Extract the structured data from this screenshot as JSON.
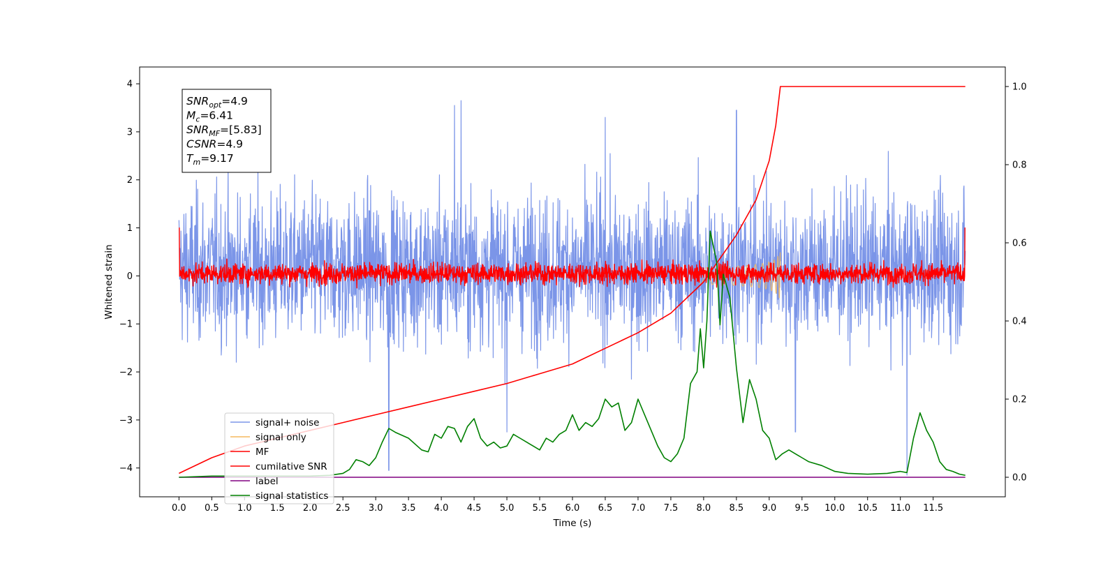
{
  "chart_data": {
    "type": "line",
    "xlabel": "Time (s)",
    "ylabel": "Whitened strain",
    "xlim": [
      -0.6,
      12.6
    ],
    "ylim_left": [
      -4.6,
      4.35
    ],
    "ylim_right": [
      -0.05,
      1.05
    ],
    "x_ticks": [
      0.0,
      0.5,
      1.0,
      1.5,
      2.0,
      2.5,
      3.0,
      3.5,
      4.0,
      4.5,
      5.0,
      5.5,
      6.0,
      6.5,
      7.0,
      7.5,
      8.0,
      8.5,
      9.0,
      9.5,
      10.0,
      10.5,
      11.0,
      11.5
    ],
    "x_tick_labels": [
      "0.0",
      "0.5",
      "1.0",
      "1.5",
      "2.0",
      "2.5",
      "3.0",
      "3.5",
      "4.0",
      "4.5",
      "5.0",
      "5.5",
      "6.0",
      "6.5",
      "7.0",
      "7.5",
      "8.0",
      "8.5",
      "9.0",
      "9.5",
      "10.0",
      "10.5",
      "11.0",
      "11.5"
    ],
    "y_ticks_left": [
      -4,
      -3,
      -2,
      -1,
      0,
      1,
      2,
      3,
      4
    ],
    "y_tick_labels_left": [
      "−4",
      "−3",
      "−2",
      "−1",
      "0",
      "1",
      "2",
      "3",
      "4"
    ],
    "y_ticks_right": [
      0.0,
      0.2,
      0.4,
      0.6,
      0.8,
      1.0
    ],
    "y_tick_labels_right": [
      "0.0",
      "0.2",
      "0.4",
      "0.6",
      "0.8",
      "1.0"
    ],
    "grid": false,
    "legend_position": "lower-left",
    "info_box": {
      "lines": [
        {
          "sym": "SNR",
          "sub": "opt",
          "val": "=4.9"
        },
        {
          "sym": "M",
          "sub": "c",
          "val": "=6.41"
        },
        {
          "sym": "SNR",
          "sub": "MF",
          "val": "=[5.83]"
        },
        {
          "sym": "CSNR",
          "sub": "",
          "val": "=4.9"
        },
        {
          "sym": "T",
          "sub": "m",
          "val": "=9.17"
        }
      ]
    },
    "series": [
      {
        "name": "signal+ noise",
        "axis": "left",
        "color": "#7b95e8",
        "kind": "noise",
        "x_range": [
          0.0,
          11.99
        ],
        "typical_range": [
          -2.0,
          2.3
        ],
        "extremes": [
          [
            4.3,
            3.65
          ],
          [
            4.2,
            3.55
          ],
          [
            6.5,
            3.3
          ],
          [
            8.5,
            3.45
          ],
          [
            5.0,
            -3.25
          ],
          [
            9.4,
            -3.25
          ],
          [
            11.1,
            -4.15
          ],
          [
            3.2,
            -4.05
          ]
        ]
      },
      {
        "name": "signal only",
        "axis": "left",
        "color": "#f5b95e",
        "kind": "chirp",
        "x_range": [
          7.9,
          9.17
        ],
        "peak_amplitude": 0.55
      },
      {
        "name": "MF",
        "axis": "left",
        "color": "#ff0000",
        "kind": "noise",
        "x_range": [
          0.0,
          11.99
        ],
        "typical_range": [
          -0.25,
          0.35
        ],
        "end_spikes": [
          [
            0.0,
            1.0
          ],
          [
            11.99,
            1.0
          ]
        ]
      },
      {
        "name": "cumilative SNR",
        "axis": "right",
        "color": "#ff0000",
        "kind": "line",
        "x": [
          0.0,
          0.5,
          1.0,
          1.5,
          2.0,
          2.5,
          3.0,
          3.5,
          4.0,
          4.5,
          5.0,
          5.5,
          6.0,
          6.5,
          7.0,
          7.5,
          8.0,
          8.5,
          8.8,
          9.0,
          9.1,
          9.17,
          11.99
        ],
        "y": [
          0.01,
          0.05,
          0.08,
          0.1,
          0.12,
          0.14,
          0.16,
          0.18,
          0.2,
          0.22,
          0.24,
          0.265,
          0.29,
          0.33,
          0.37,
          0.42,
          0.5,
          0.62,
          0.71,
          0.81,
          0.9,
          1.0,
          1.0
        ]
      },
      {
        "name": "label",
        "axis": "right",
        "color": "#800080",
        "kind": "line",
        "x": [
          0.0,
          11.99
        ],
        "y": [
          0.0,
          0.0
        ]
      },
      {
        "name": "signal statistics",
        "axis": "right",
        "color": "#008000",
        "kind": "line",
        "x": [
          0.0,
          0.5,
          1.0,
          1.5,
          2.0,
          2.3,
          2.5,
          2.6,
          2.7,
          2.8,
          2.9,
          3.0,
          3.1,
          3.2,
          3.3,
          3.5,
          3.7,
          3.8,
          3.9,
          4.0,
          4.1,
          4.2,
          4.3,
          4.4,
          4.5,
          4.6,
          4.7,
          4.8,
          4.9,
          5.0,
          5.1,
          5.2,
          5.3,
          5.5,
          5.6,
          5.7,
          5.8,
          5.9,
          6.0,
          6.1,
          6.2,
          6.3,
          6.4,
          6.5,
          6.6,
          6.7,
          6.8,
          6.9,
          7.0,
          7.1,
          7.2,
          7.3,
          7.4,
          7.5,
          7.6,
          7.7,
          7.8,
          7.9,
          7.95,
          8.0,
          8.05,
          8.1,
          8.2,
          8.25,
          8.3,
          8.4,
          8.5,
          8.6,
          8.7,
          8.8,
          8.9,
          9.0,
          9.1,
          9.2,
          9.3,
          9.4,
          9.5,
          9.6,
          9.8,
          10.0,
          10.2,
          10.5,
          10.8,
          11.0,
          11.1,
          11.2,
          11.3,
          11.4,
          11.5,
          11.6,
          11.7,
          11.8,
          11.9,
          11.99
        ],
        "y": [
          0.0,
          0.003,
          0.003,
          0.003,
          0.003,
          0.005,
          0.01,
          0.02,
          0.045,
          0.04,
          0.03,
          0.05,
          0.09,
          0.125,
          0.115,
          0.1,
          0.07,
          0.065,
          0.11,
          0.1,
          0.13,
          0.125,
          0.09,
          0.13,
          0.15,
          0.1,
          0.08,
          0.09,
          0.075,
          0.08,
          0.11,
          0.1,
          0.09,
          0.07,
          0.1,
          0.09,
          0.11,
          0.12,
          0.16,
          0.12,
          0.14,
          0.13,
          0.15,
          0.2,
          0.18,
          0.19,
          0.12,
          0.14,
          0.2,
          0.16,
          0.12,
          0.08,
          0.05,
          0.04,
          0.06,
          0.1,
          0.24,
          0.27,
          0.38,
          0.28,
          0.4,
          0.63,
          0.55,
          0.39,
          0.52,
          0.46,
          0.28,
          0.14,
          0.25,
          0.2,
          0.12,
          0.1,
          0.045,
          0.06,
          0.07,
          0.06,
          0.05,
          0.04,
          0.03,
          0.015,
          0.01,
          0.008,
          0.01,
          0.015,
          0.012,
          0.1,
          0.165,
          0.12,
          0.09,
          0.04,
          0.02,
          0.015,
          0.008,
          0.005
        ]
      }
    ],
    "legend": [
      {
        "name": "signal+ noise",
        "color": "#7b95e8"
      },
      {
        "name": "signal only",
        "color": "#f5b95e"
      },
      {
        "name": "MF",
        "color": "#ff0000"
      },
      {
        "name": "cumilative SNR",
        "color": "#ff0000"
      },
      {
        "name": "label",
        "color": "#800080"
      },
      {
        "name": "signal statistics",
        "color": "#008000"
      }
    ]
  }
}
